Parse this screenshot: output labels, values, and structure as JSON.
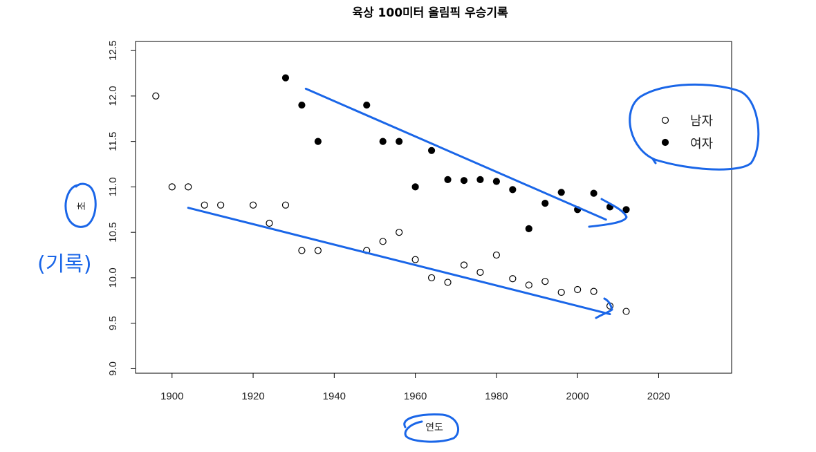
{
  "chart_data": {
    "type": "scatter",
    "title": "육상 100미터 올림픽 우승기록",
    "xlabel": "연도",
    "ylabel": "초",
    "xlim": [
      1891,
      2038
    ],
    "ylim": [
      8.95,
      12.6
    ],
    "xticks": [
      1900,
      1920,
      1940,
      1960,
      1980,
      2000,
      2020
    ],
    "yticks": [
      9.0,
      9.5,
      10.0,
      10.5,
      11.0,
      11.5,
      12.0,
      12.5
    ],
    "xtick_labels": [
      "1900",
      "1920",
      "1940",
      "1960",
      "1980",
      "2000",
      "2020"
    ],
    "ytick_labels": [
      "9.0",
      "9.5",
      "10.0",
      "10.5",
      "11.0",
      "11.5",
      "12.0",
      "12.5"
    ],
    "grid": false,
    "legend": {
      "position": "top-right",
      "entries": [
        "남자",
        "여자"
      ]
    },
    "series": [
      {
        "name": "남자",
        "marker": "open-circle",
        "x": [
          1896,
          1900,
          1904,
          1908,
          1912,
          1920,
          1924,
          1928,
          1932,
          1936,
          1948,
          1952,
          1956,
          1960,
          1964,
          1968,
          1972,
          1976,
          1980,
          1984,
          1988,
          1992,
          1996,
          2000,
          2004,
          2008,
          2012
        ],
        "y": [
          12.0,
          11.0,
          11.0,
          10.8,
          10.8,
          10.8,
          10.6,
          10.8,
          10.3,
          10.3,
          10.3,
          10.4,
          10.5,
          10.2,
          10.0,
          9.95,
          10.14,
          10.06,
          10.25,
          9.99,
          9.92,
          9.96,
          9.84,
          9.87,
          9.85,
          9.69,
          9.63
        ]
      },
      {
        "name": "여자",
        "marker": "filled-circle",
        "x": [
          1928,
          1932,
          1936,
          1948,
          1952,
          1956,
          1960,
          1964,
          1968,
          1972,
          1976,
          1980,
          1984,
          1988,
          1992,
          1996,
          2000,
          2004,
          2008,
          2012
        ],
        "y": [
          12.2,
          11.9,
          11.5,
          11.9,
          11.5,
          11.5,
          11.0,
          11.4,
          11.08,
          11.07,
          11.08,
          11.06,
          10.97,
          10.54,
          10.82,
          10.94,
          10.75,
          10.93,
          10.78,
          10.75
        ]
      }
    ],
    "annotations": {
      "style": "hand-drawn",
      "color": "#1a66e8",
      "ylabel_note": "(기록)",
      "trend_lines": [
        {
          "series": "남자",
          "from": [
            1904,
            10.77
          ],
          "to": [
            2008,
            9.6
          ]
        },
        {
          "series": "여자",
          "from": [
            1933,
            12.08
          ],
          "to": [
            2007,
            10.64
          ]
        }
      ],
      "circled": [
        "legend",
        "ylabel",
        "xlabel"
      ]
    }
  }
}
